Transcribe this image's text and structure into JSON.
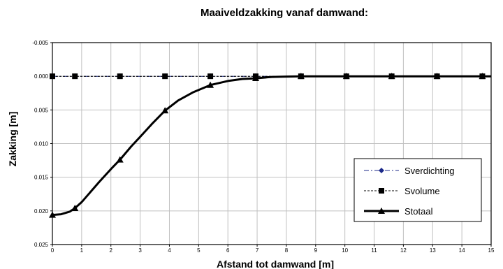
{
  "chart_data": {
    "type": "line",
    "title": "Maaiveldzakking vanaf damwand:",
    "xlabel": "Afstand tot damwand [m]",
    "ylabel": "Zakking [m]",
    "xlim": [
      0,
      15
    ],
    "ylim": [
      -0.005,
      0.025
    ],
    "y_inverted": true,
    "grid": true,
    "legend_position": "lower-right",
    "x_ticks": [
      "0",
      "1",
      "2",
      "3",
      "4",
      "5",
      "6",
      "7",
      "8",
      "9",
      "10",
      "11",
      "12",
      "13",
      "14",
      "15"
    ],
    "y_ticks": [
      "-0.005",
      "0.000",
      "0.005",
      "0.010",
      "0.015",
      "0.020",
      "0.025"
    ],
    "series": [
      {
        "name": "Sverdichting",
        "line_style": "dash-dot",
        "marker": "diamond",
        "color": "#1c2a8a",
        "x": [
          0,
          0.77,
          2.31,
          3.85,
          5.4,
          6.95,
          8.5,
          10.05,
          11.6,
          13.15,
          14.7
        ],
        "y": [
          0,
          0,
          0,
          0,
          0,
          0,
          0,
          0,
          0,
          0,
          0
        ]
      },
      {
        "name": "Svolume",
        "line_style": "dashed",
        "marker": "square",
        "color": "#000000",
        "x": [
          0,
          0.77,
          2.31,
          3.85,
          5.4,
          6.95,
          8.5,
          10.05,
          11.6,
          13.15,
          14.7
        ],
        "y": [
          0,
          0,
          0,
          0,
          0,
          0,
          0,
          0,
          0,
          0,
          0
        ]
      },
      {
        "name": "Stotaal",
        "line_style": "solid",
        "marker": "triangle",
        "color": "#000000",
        "x": [
          0,
          0.77,
          2.31,
          3.85,
          5.4,
          6.95,
          8.5,
          10.05,
          11.6,
          13.15,
          14.7
        ],
        "y": [
          0.0206,
          0.0196,
          0.0124,
          0.0051,
          0.0013,
          0.0003,
          0,
          0,
          0,
          0,
          0
        ],
        "curve_x": [
          0,
          0.3,
          0.6,
          0.77,
          1.0,
          1.3,
          1.6,
          2.0,
          2.31,
          2.7,
          3.0,
          3.4,
          3.85,
          4.3,
          4.8,
          5.4,
          6.0,
          6.5,
          6.95,
          7.5,
          8.0,
          8.5,
          9.0,
          10.05,
          11.6,
          13.15,
          14.7,
          15.0
        ],
        "curve_y": [
          0.0206,
          0.0205,
          0.0201,
          0.0196,
          0.0187,
          0.0172,
          0.0157,
          0.0138,
          0.0124,
          0.0104,
          0.009,
          0.0071,
          0.0051,
          0.0036,
          0.0024,
          0.0013,
          0.0007,
          0.0004,
          0.0003,
          0.0001,
          5e-05,
          0,
          0,
          0,
          0,
          0,
          0,
          0
        ]
      }
    ]
  }
}
